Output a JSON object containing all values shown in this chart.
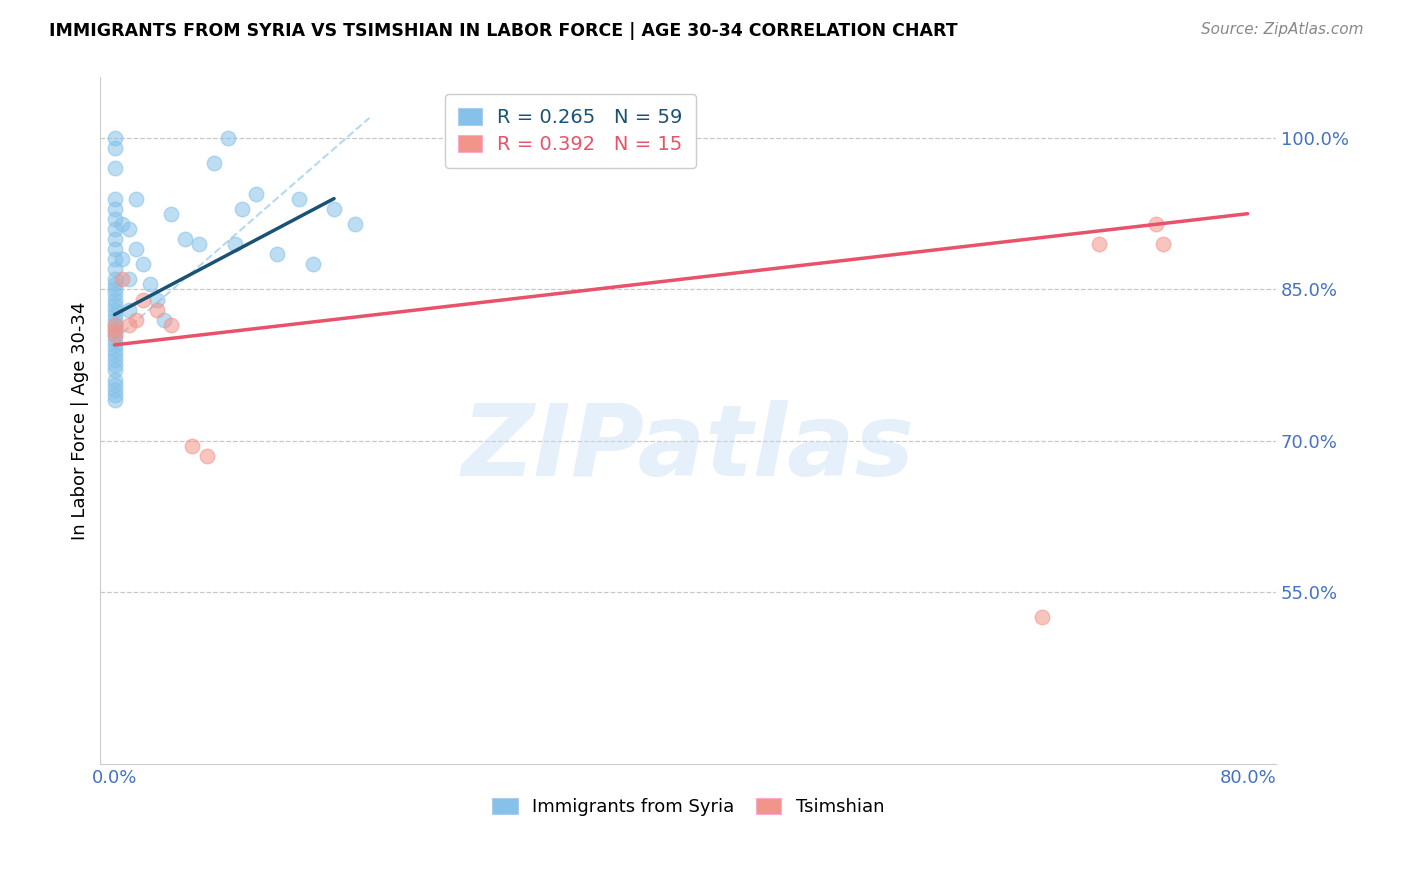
{
  "title": "IMMIGRANTS FROM SYRIA VS TSIMSHIAN IN LABOR FORCE | AGE 30-34 CORRELATION CHART",
  "source": "Source: ZipAtlas.com",
  "ylabel": "In Labor Force | Age 30-34",
  "watermark": "ZIPatlas",
  "legend1_R": "0.265",
  "legend1_N": "59",
  "legend2_R": "0.392",
  "legend2_N": "15",
  "legend1_label": "Immigrants from Syria",
  "legend2_label": "Tsimshian",
  "xlim": [
    -0.01,
    0.82
  ],
  "ylim": [
    0.38,
    1.06
  ],
  "yticks": [
    0.55,
    0.7,
    0.85,
    1.0
  ],
  "ytick_labels": [
    "55.0%",
    "70.0%",
    "85.0%",
    "100.0%"
  ],
  "xticks": [
    0.0,
    0.1,
    0.2,
    0.3,
    0.4,
    0.5,
    0.6,
    0.7,
    0.8
  ],
  "xtick_labels": [
    "0.0%",
    "",
    "",
    "",
    "",
    "",
    "",
    "",
    "80.0%"
  ],
  "blue_color": "#85C1E9",
  "pink_color": "#F1948A",
  "blue_line_color": "#1A5276",
  "pink_line_color": "#E8526A",
  "axis_color": "#4472C4",
  "grid_color": "#BBBBBB",
  "blue_scatter_x": [
    0.0,
    0.0,
    0.0,
    0.0,
    0.0,
    0.0,
    0.0,
    0.0,
    0.0,
    0.0,
    0.0,
    0.0,
    0.0,
    0.0,
    0.0,
    0.0,
    0.0,
    0.0,
    0.0,
    0.0,
    0.0,
    0.0,
    0.0,
    0.0,
    0.0,
    0.0,
    0.0,
    0.0,
    0.0,
    0.0,
    0.005,
    0.005,
    0.01,
    0.01,
    0.01,
    0.015,
    0.015,
    0.02,
    0.025,
    0.03,
    0.035,
    0.04,
    0.05,
    0.06,
    0.07,
    0.08,
    0.085,
    0.09,
    0.1,
    0.115,
    0.13,
    0.14,
    0.155,
    0.17,
    0.0,
    0.0,
    0.0,
    0.0,
    0.0
  ],
  "blue_scatter_y": [
    1.0,
    0.99,
    0.97,
    0.94,
    0.93,
    0.92,
    0.91,
    0.9,
    0.89,
    0.88,
    0.87,
    0.86,
    0.855,
    0.85,
    0.845,
    0.84,
    0.835,
    0.83,
    0.825,
    0.82,
    0.815,
    0.81,
    0.805,
    0.8,
    0.795,
    0.79,
    0.785,
    0.78,
    0.775,
    0.77,
    0.915,
    0.88,
    0.91,
    0.86,
    0.83,
    0.94,
    0.89,
    0.875,
    0.855,
    0.84,
    0.82,
    0.925,
    0.9,
    0.895,
    0.975,
    1.0,
    0.895,
    0.93,
    0.945,
    0.885,
    0.94,
    0.875,
    0.93,
    0.915,
    0.76,
    0.755,
    0.75,
    0.745,
    0.74
  ],
  "pink_scatter_x": [
    0.0,
    0.0,
    0.0,
    0.005,
    0.01,
    0.015,
    0.02,
    0.03,
    0.04,
    0.055,
    0.065,
    0.655,
    0.695,
    0.735,
    0.74
  ],
  "pink_scatter_y": [
    0.815,
    0.81,
    0.805,
    0.86,
    0.815,
    0.82,
    0.84,
    0.83,
    0.815,
    0.695,
    0.685,
    0.525,
    0.895,
    0.915,
    0.895
  ],
  "blue_trendline_x": [
    0.0,
    0.155
  ],
  "blue_trendline_y": [
    0.825,
    0.94
  ],
  "pink_trendline_x": [
    0.0,
    0.8
  ],
  "pink_trendline_y": [
    0.795,
    0.925
  ],
  "dash_line_x": [
    0.0,
    0.18
  ],
  "dash_line_y": [
    0.8,
    1.02
  ]
}
